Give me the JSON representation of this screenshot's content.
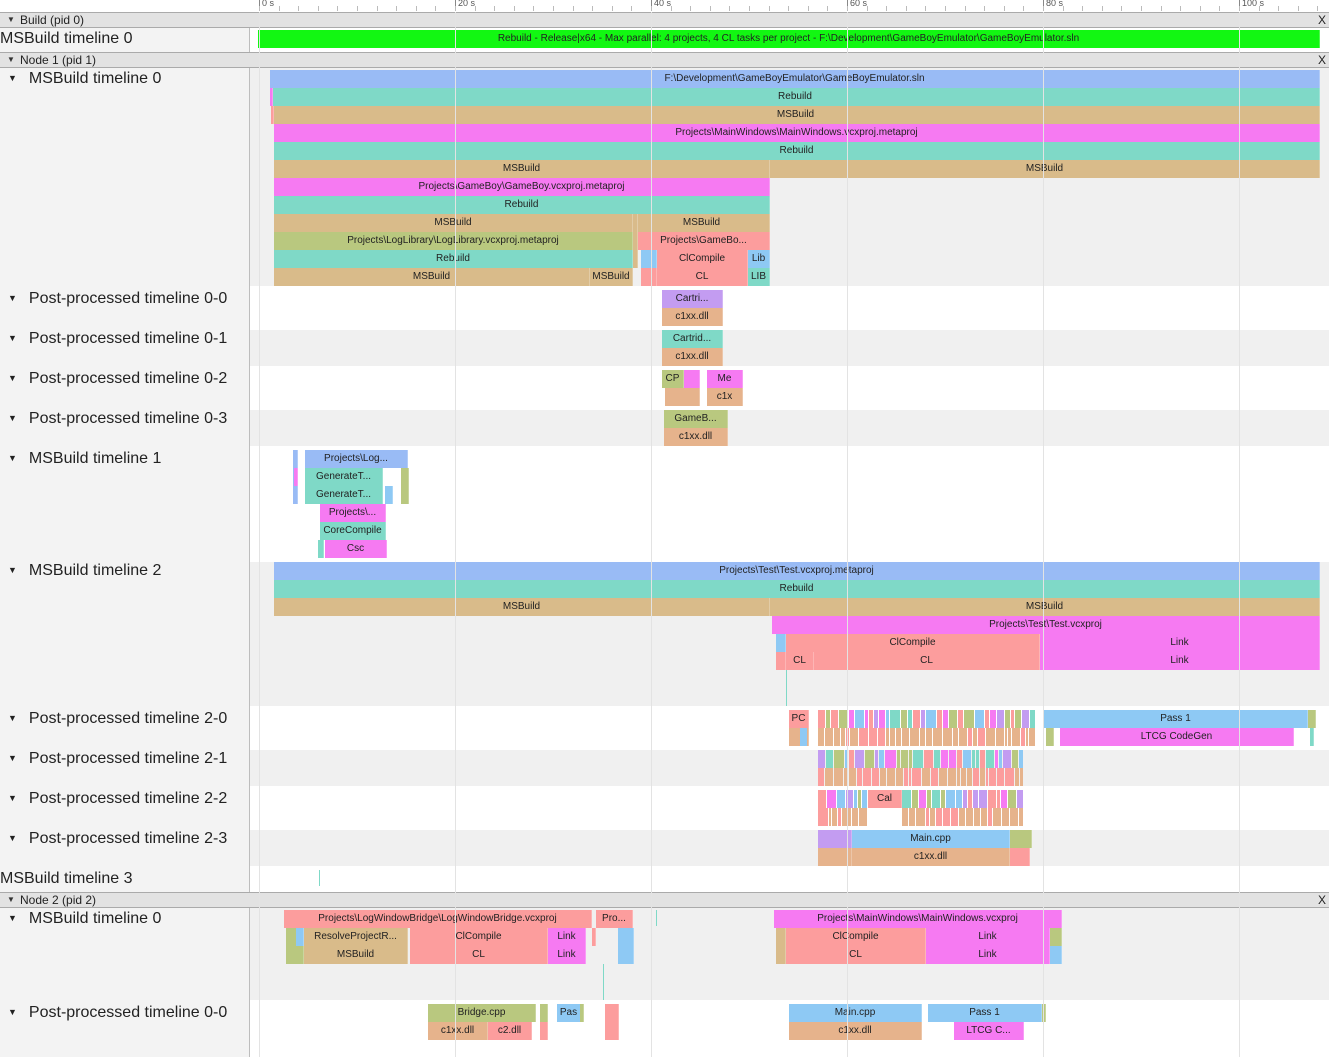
{
  "colors": {
    "blue": "#99bbf5",
    "teal": "#7fd9c7",
    "tan": "#d9bb8a",
    "pink": "#f67af2",
    "olive": "#b9c87f",
    "salmon": "#fc9d9d",
    "lavender": "#c39cf1",
    "green": "#12f712",
    "cyan": "#8ec9f4",
    "orange": "#e6b38c"
  },
  "ruler": {
    "labels": [
      "0 s",
      "20 s",
      "40 s",
      "60 s",
      "80 s",
      "100 s"
    ]
  },
  "processes": [
    {
      "title": "Build (pid 0)",
      "close": "X"
    },
    {
      "title": "Node 1 (pid 1)",
      "close": "X"
    },
    {
      "title": "Node 2 (pid 2)",
      "close": "X"
    }
  ],
  "tracks": [
    {
      "name": "MSBuild timeline 0",
      "expanded": false
    },
    {
      "name": "MSBuild timeline 0",
      "expanded": true
    },
    {
      "name": "Post-processed timeline 0-0",
      "expanded": true
    },
    {
      "name": "Post-processed timeline 0-1",
      "expanded": true
    },
    {
      "name": "Post-processed timeline 0-2",
      "expanded": true
    },
    {
      "name": "Post-processed timeline 0-3",
      "expanded": true
    },
    {
      "name": "MSBuild timeline 1",
      "expanded": true
    },
    {
      "name": "MSBuild timeline 2",
      "expanded": true
    },
    {
      "name": "Post-processed timeline 2-0",
      "expanded": true
    },
    {
      "name": "Post-processed timeline 2-1",
      "expanded": true
    },
    {
      "name": "Post-processed timeline 2-2",
      "expanded": true
    },
    {
      "name": "Post-processed timeline 2-3",
      "expanded": true
    },
    {
      "name": "MSBuild timeline 3",
      "expanded": false
    },
    {
      "name": "MSBuild timeline 0",
      "expanded": true
    },
    {
      "name": "Post-processed timeline 0-0",
      "expanded": true
    }
  ],
  "slices": [
    {
      "label": "Rebuild - Release|x64 - Max parallel: 4 projects, 4 CL tasks per project - F:\\Development\\GameBoyEmulator\\GameBoyEmulator.sln",
      "color": "green"
    },
    {
      "label": "F:\\Development\\GameBoyEmulator\\GameBoyEmulator.sln",
      "color": "blue"
    },
    {
      "label": "Rebuild",
      "color": "teal"
    },
    {
      "label": "MSBuild",
      "color": "tan"
    },
    {
      "label": "Projects\\MainWindows\\MainWindows.vcxproj.metaproj",
      "color": "pink"
    },
    {
      "label": "Rebuild",
      "color": "teal"
    },
    {
      "label": "MSBuild",
      "color": "tan"
    },
    {
      "label": "MSBuild",
      "color": "tan"
    },
    {
      "label": "Projects\\GameBoy\\GameBoy.vcxproj.metaproj",
      "color": "pink"
    },
    {
      "label": "Rebuild",
      "color": "teal"
    },
    {
      "label": "MSBuild",
      "color": "tan"
    },
    {
      "label": "MSBuild",
      "color": "tan"
    },
    {
      "label": "Projects\\LogLibrary\\LogLibrary.vcxproj.metaproj",
      "color": "olive"
    },
    {
      "label": "Projects\\GameBo...",
      "color": "salmon"
    },
    {
      "label": "Rebuild",
      "color": "teal"
    },
    {
      "label": "",
      "color": "cyan"
    },
    {
      "label": "ClCompile",
      "color": "salmon"
    },
    {
      "label": "Lib",
      "color": "cyan"
    },
    {
      "label": "MSBuild",
      "color": "tan"
    },
    {
      "label": "MSBuild",
      "color": "tan"
    },
    {
      "label": "",
      "color": "salmon"
    },
    {
      "label": "CL",
      "color": "salmon"
    },
    {
      "label": "LIB",
      "color": "teal"
    },
    {
      "label": "Cartri...",
      "color": "lavender"
    },
    {
      "label": "c1xx.dll",
      "color": "orange"
    },
    {
      "label": "Cartrid...",
      "color": "teal"
    },
    {
      "label": "c1xx.dll",
      "color": "orange"
    },
    {
      "label": "CP",
      "color": "olive"
    },
    {
      "label": "",
      "color": "pink"
    },
    {
      "label": "Me",
      "color": "pink"
    },
    {
      "label": "",
      "color": "orange"
    },
    {
      "label": "c1x",
      "color": "orange"
    },
    {
      "label": "GameB...",
      "color": "olive"
    },
    {
      "label": "c1xx.dll",
      "color": "orange"
    },
    {
      "label": "Projects\\Log...",
      "color": "blue"
    },
    {
      "label": "GenerateT...",
      "color": "teal"
    },
    {
      "label": "GenerateT...",
      "color": "teal"
    },
    {
      "label": "Projects\\...",
      "color": "pink"
    },
    {
      "label": "CoreCompile",
      "color": "teal"
    },
    {
      "label": "Csc",
      "color": "pink"
    },
    {
      "label": "Projects\\Test\\Test.vcxproj.metaproj",
      "color": "blue"
    },
    {
      "label": "Rebuild",
      "color": "teal"
    },
    {
      "label": "MSBuild",
      "color": "tan"
    },
    {
      "label": "MSBuild",
      "color": "tan"
    },
    {
      "label": "Projects\\Test\\Test.vcxproj",
      "color": "pink"
    },
    {
      "label": "ClCompile",
      "color": "salmon"
    },
    {
      "label": "Link",
      "color": "pink"
    },
    {
      "label": "CL",
      "color": "salmon"
    },
    {
      "label": "CL",
      "color": "salmon"
    },
    {
      "label": "Link",
      "color": "pink"
    },
    {
      "label": "PC",
      "color": "salmon"
    },
    {
      "label": "Pass 1",
      "color": "cyan"
    },
    {
      "label": "LTCG CodeGen",
      "color": "pink"
    },
    {
      "label": "Cal",
      "color": "salmon"
    },
    {
      "label": "Main.cpp",
      "color": "cyan"
    },
    {
      "label": "c1xx.dll",
      "color": "orange"
    },
    {
      "label": "Projects\\LogWindowBridge\\LogWindowBridge.vcxproj",
      "color": "salmon"
    },
    {
      "label": "Pro...",
      "color": "salmon"
    },
    {
      "label": "Projects\\MainWindows\\MainWindows.vcxproj",
      "color": "pink"
    },
    {
      "label": "ResolveProjectR...",
      "color": "tan"
    },
    {
      "label": "ClCompile",
      "color": "salmon"
    },
    {
      "label": "Link",
      "color": "pink"
    },
    {
      "label": "ClCompile",
      "color": "salmon"
    },
    {
      "label": "Link",
      "color": "pink"
    },
    {
      "label": "MSBuild",
      "color": "tan"
    },
    {
      "label": "CL",
      "color": "salmon"
    },
    {
      "label": "Link",
      "color": "pink"
    },
    {
      "label": "CL",
      "color": "salmon"
    },
    {
      "label": "Link",
      "color": "pink"
    },
    {
      "label": "Bridge.cpp",
      "color": "olive"
    },
    {
      "label": "Pas",
      "color": "cyan"
    },
    {
      "label": "Main.cpp",
      "color": "cyan"
    },
    {
      "label": "Pass 1",
      "color": "cyan"
    },
    {
      "label": "c1xx.dll",
      "color": "orange"
    },
    {
      "label": "c2.dll",
      "color": "salmon"
    },
    {
      "label": "c1xx.dll",
      "color": "orange"
    },
    {
      "label": "LTCG C...",
      "color": "pink"
    }
  ]
}
